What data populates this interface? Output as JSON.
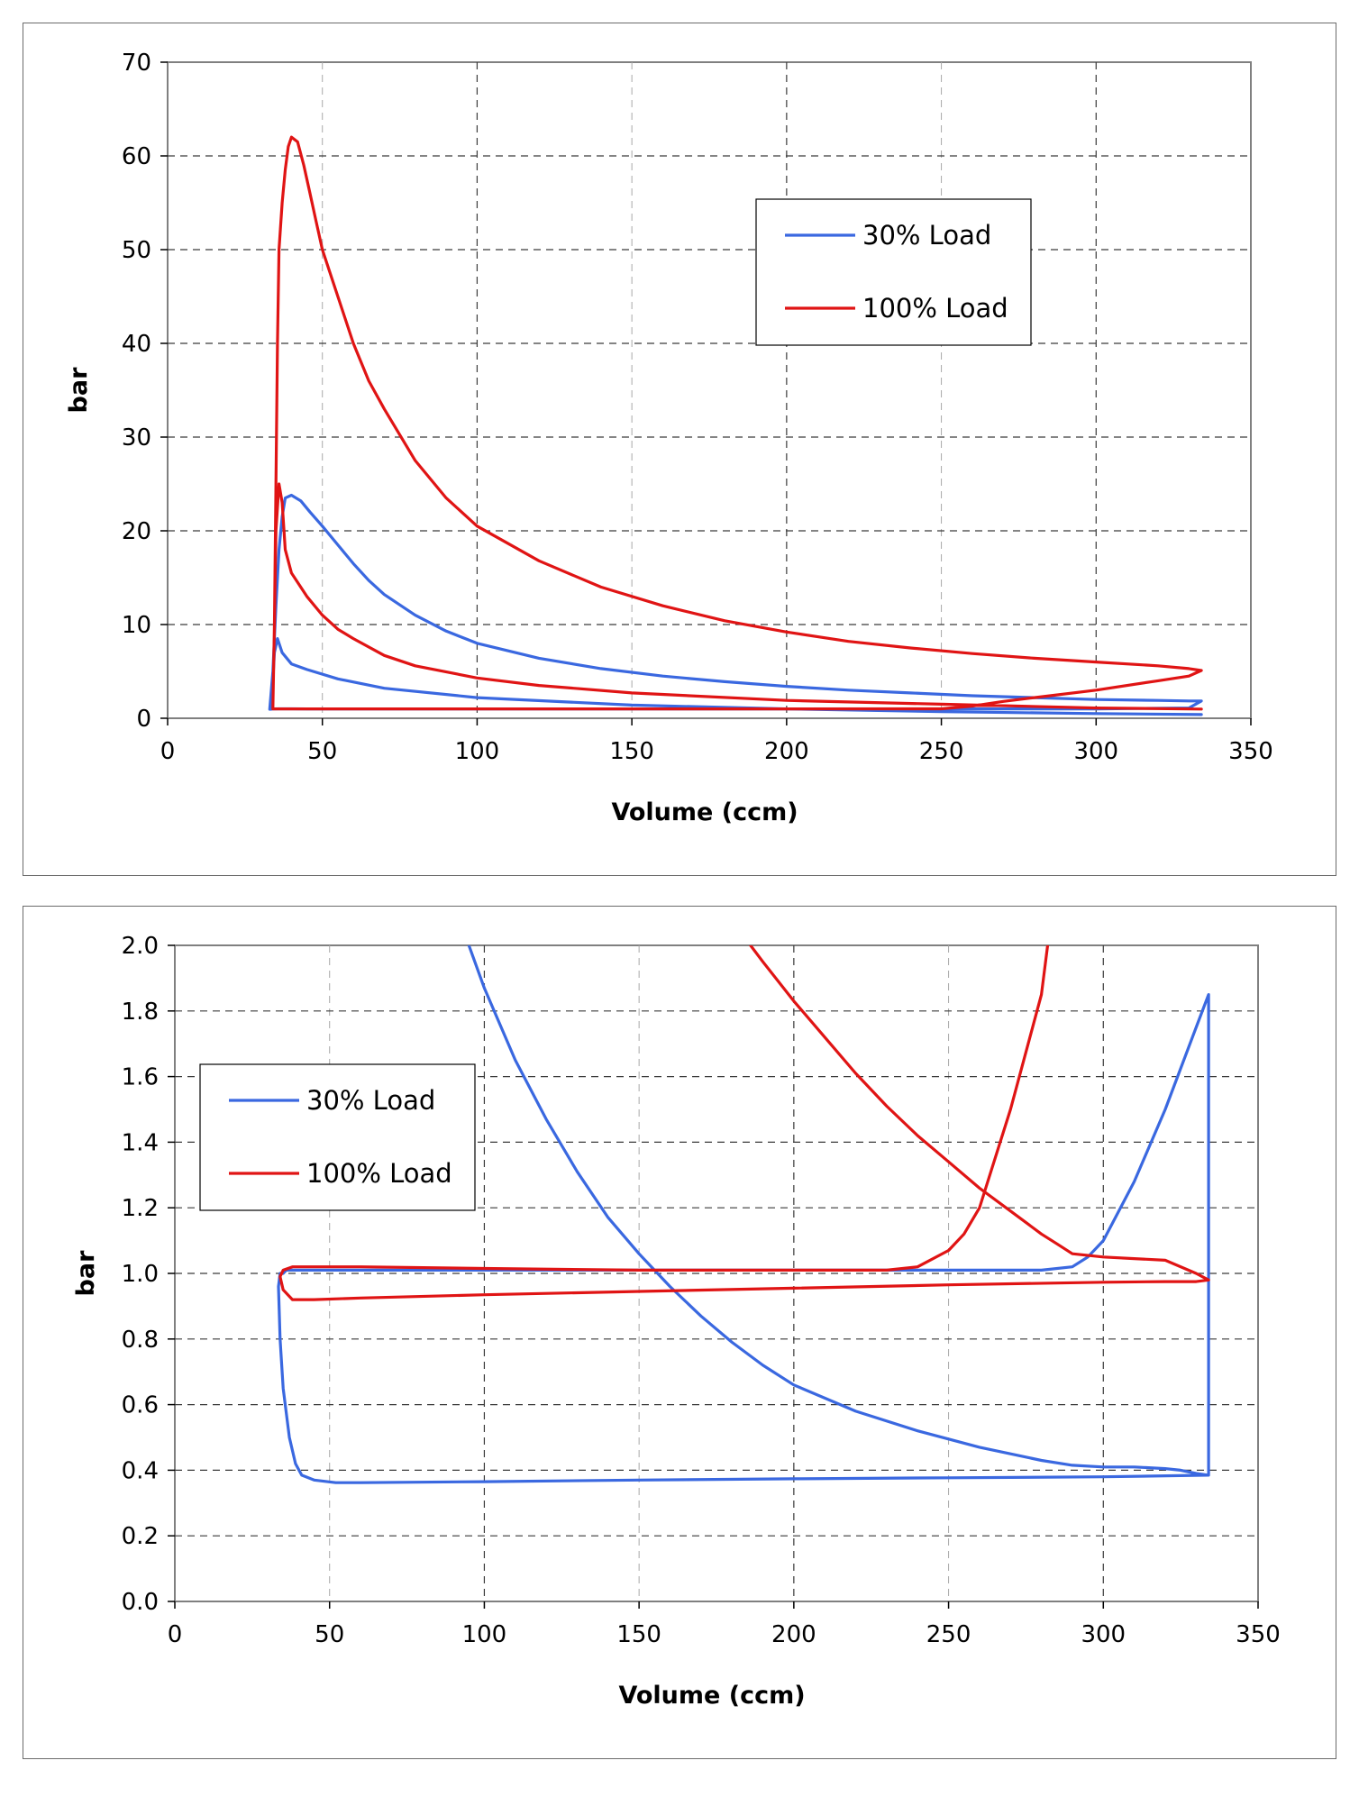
{
  "colors": {
    "series_30": "#3a68e0",
    "series_100": "#e01414",
    "grid": "#4a4a4a",
    "axis": "#808080",
    "frame": "#6b6b6b"
  },
  "chart_data": [
    {
      "type": "line",
      "xlabel": "Volume (ccm)",
      "ylabel": "bar",
      "xlim": [
        0,
        350
      ],
      "ylim": [
        0,
        70
      ],
      "xticks": [
        "0",
        "50",
        "100",
        "150",
        "200",
        "250",
        "300",
        "350"
      ],
      "yticks": [
        "0",
        "10",
        "20",
        "30",
        "40",
        "50",
        "60",
        "70"
      ],
      "grid": true,
      "legend_position": "top-right",
      "series": [
        {
          "name": "30% Load",
          "color": "#3a68e0",
          "x": [
            33,
            34,
            35,
            36,
            37,
            38,
            40,
            43,
            46,
            50,
            55,
            60,
            65,
            70,
            80,
            90,
            100,
            120,
            140,
            160,
            180,
            200,
            220,
            240,
            260,
            280,
            300,
            320,
            330,
            334,
            330,
            300,
            250,
            200,
            150,
            100,
            60,
            45,
            40,
            36,
            34,
            33.5,
            34,
            34.5,
            35.5,
            37,
            40,
            45,
            55,
            70,
            100,
            150,
            200,
            250,
            300,
            334
          ],
          "y": [
            0.96,
            5,
            12,
            18,
            21.5,
            23.5,
            23.8,
            23.2,
            22,
            20.5,
            18.5,
            16.5,
            14.7,
            13.2,
            11,
            9.3,
            8,
            6.4,
            5.3,
            4.5,
            3.9,
            3.4,
            3.0,
            2.7,
            2.4,
            2.2,
            2.0,
            1.9,
            1.85,
            1.85,
            1.1,
            1.0,
            1.0,
            1.0,
            1.0,
            1.0,
            1.0,
            1.0,
            1.01,
            1.01,
            1.0,
            0.96,
            4,
            7,
            8.5,
            7,
            5.8,
            5.2,
            4.2,
            3.2,
            2.2,
            1.4,
            1.0,
            0.7,
            0.5,
            0.39
          ]
        },
        {
          "name": "100% Load",
          "color": "#e01414",
          "x": [
            34,
            34.5,
            35,
            35.5,
            36,
            37,
            38,
            39,
            40,
            42,
            44,
            46,
            48,
            50,
            55,
            60,
            65,
            70,
            80,
            90,
            100,
            120,
            140,
            160,
            180,
            200,
            220,
            240,
            260,
            280,
            300,
            320,
            330,
            334,
            330,
            320,
            300,
            280,
            270,
            260,
            250,
            200,
            150,
            100,
            60,
            45,
            40,
            36,
            35,
            34,
            34.5,
            35,
            36,
            37,
            38,
            40,
            45,
            50,
            55,
            60,
            70,
            80,
            100,
            120,
            150,
            200,
            250,
            300,
            334
          ],
          "y": [
            1.0,
            10,
            25,
            40,
            50,
            55,
            58.5,
            61,
            62,
            61.5,
            59,
            56,
            53,
            50,
            45,
            40,
            36,
            33,
            27.5,
            23.5,
            20.5,
            16.8,
            14.0,
            12.0,
            10.4,
            9.2,
            8.2,
            7.5,
            6.9,
            6.4,
            6.0,
            5.6,
            5.3,
            5.1,
            4.5,
            4.0,
            3.0,
            2.2,
            1.8,
            1.3,
            1.01,
            1.0,
            1.0,
            1.0,
            1.0,
            1.0,
            1.0,
            1.0,
            1.0,
            1.0,
            10,
            20,
            25,
            23,
            18,
            15.5,
            13,
            11,
            9.5,
            8.5,
            6.7,
            5.6,
            4.3,
            3.5,
            2.7,
            1.9,
            1.5,
            1.1,
            0.98
          ]
        }
      ]
    },
    {
      "type": "line",
      "xlabel": "Volume (ccm)",
      "ylabel": "bar",
      "xlim": [
        0,
        350
      ],
      "ylim": [
        0,
        2
      ],
      "xticks": [
        "0",
        "50",
        "100",
        "150",
        "200",
        "250",
        "300",
        "350"
      ],
      "yticks": [
        "0.0",
        "0.2",
        "0.4",
        "0.6",
        "0.8",
        "1.0",
        "1.2",
        "1.4",
        "1.6",
        "1.8",
        "2.0"
      ],
      "grid": true,
      "legend_position": "top-left",
      "series": [
        {
          "name": "30% Load",
          "color": "#3a68e0",
          "x": [
            95,
            100,
            110,
            120,
            130,
            140,
            150,
            160,
            170,
            180,
            190,
            200,
            220,
            240,
            260,
            280,
            290,
            300,
            310,
            320,
            325,
            330,
            334,
            334,
            330,
            320,
            310,
            300,
            295,
            290,
            280,
            250,
            200,
            150,
            100,
            60,
            45,
            38,
            36,
            35,
            34,
            33.5,
            34,
            35,
            37,
            39,
            41,
            45,
            52,
            60,
            100,
            150,
            200,
            250,
            300,
            334
          ],
          "y": [
            2.0,
            1.87,
            1.65,
            1.47,
            1.31,
            1.17,
            1.06,
            0.96,
            0.87,
            0.79,
            0.72,
            0.66,
            0.58,
            0.52,
            0.47,
            0.43,
            0.415,
            0.41,
            0.41,
            0.405,
            0.4,
            0.39,
            0.385,
            1.85,
            1.75,
            1.5,
            1.28,
            1.1,
            1.05,
            1.02,
            1.01,
            1.01,
            1.01,
            1.01,
            1.01,
            1.01,
            1.01,
            1.01,
            1.01,
            1.0,
            1.0,
            0.96,
            0.8,
            0.65,
            0.5,
            0.42,
            0.385,
            0.37,
            0.362,
            0.362,
            0.365,
            0.37,
            0.374,
            0.377,
            0.38,
            0.385
          ]
        },
        {
          "name": "100% Load",
          "color": "#e01414",
          "x": [
            186,
            190,
            200,
            210,
            220,
            230,
            240,
            250,
            260,
            270,
            280,
            285,
            290,
            300,
            310,
            320,
            330,
            334,
            330,
            320,
            300,
            250,
            200,
            150,
            100,
            60,
            45,
            38,
            35,
            34,
            35,
            38,
            42,
            46,
            50,
            60,
            100,
            150,
            200,
            230,
            240,
            250,
            255,
            260,
            270,
            280,
            282
          ],
          "y": [
            2.0,
            1.95,
            1.83,
            1.72,
            1.61,
            1.51,
            1.42,
            1.34,
            1.26,
            1.19,
            1.12,
            1.09,
            1.06,
            1.05,
            1.045,
            1.04,
            1.0,
            0.98,
            0.975,
            0.975,
            0.973,
            0.965,
            0.955,
            0.945,
            0.935,
            0.925,
            0.92,
            0.92,
            0.95,
            0.99,
            1.01,
            1.02,
            1.02,
            1.02,
            1.02,
            1.02,
            1.015,
            1.01,
            1.01,
            1.01,
            1.02,
            1.07,
            1.12,
            1.2,
            1.5,
            1.85,
            2.0
          ]
        }
      ]
    }
  ]
}
